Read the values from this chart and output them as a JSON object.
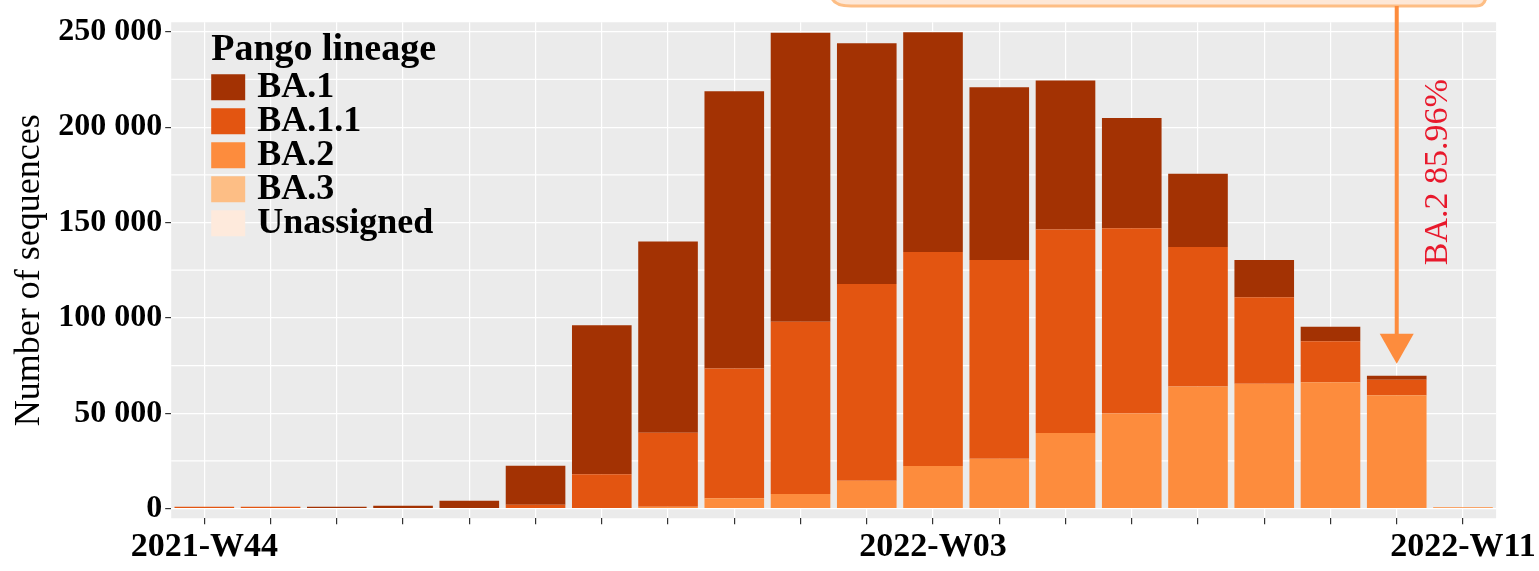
{
  "chart_data": {
    "type": "bar",
    "stacked": true,
    "ylabel": "Number of sequences",
    "legend_title": "Pango lineage",
    "legend": "top left",
    "grid": true,
    "categories": [
      "2021-W44",
      null,
      null,
      null,
      null,
      null,
      null,
      null,
      null,
      null,
      null,
      "2022-W03",
      null,
      null,
      null,
      null,
      null,
      null,
      null,
      "2022-W11"
    ],
    "series": [
      {
        "name": "Unassigned",
        "color": "#feeadc",
        "values": [
          0,
          0,
          0,
          0,
          0,
          0,
          0,
          0,
          0,
          0,
          0,
          0,
          0,
          0,
          0,
          0,
          0,
          0,
          0,
          0
        ]
      },
      {
        "name": "BA.3",
        "color": "#fdbe85",
        "values": [
          0,
          0,
          0,
          0,
          0,
          0,
          0,
          0,
          0,
          0,
          0,
          0,
          0,
          0,
          0,
          0,
          0,
          0,
          0,
          0
        ]
      },
      {
        "name": "BA.2",
        "color": "#fd8c3d",
        "values": [
          0,
          0,
          0,
          0,
          0,
          0,
          0,
          1000,
          5500,
          7700,
          14600,
          22300,
          26200,
          39600,
          49900,
          64100,
          65500,
          66200,
          59500,
          800
        ]
      },
      {
        "name": "BA.1.1",
        "color": "#e35511",
        "values": [
          1000,
          1000,
          0,
          0,
          0,
          2100,
          18000,
          38800,
          68000,
          90300,
          103200,
          112200,
          104100,
          106800,
          97100,
          73100,
          45300,
          21600,
          8100,
          0
        ]
      },
      {
        "name": "BA.1",
        "color": "#a33203",
        "values": [
          0,
          0,
          1000,
          1500,
          4200,
          20400,
          78200,
          100200,
          145300,
          151500,
          126200,
          115200,
          90600,
          78000,
          57800,
          38400,
          19500,
          7600,
          2100,
          0
        ]
      }
    ],
    "ylim": [
      -5000,
      255000
    ],
    "yticks": [
      {
        "value": 0,
        "label": "0"
      },
      {
        "value": 50000,
        "label": "50 000"
      },
      {
        "value": 100000,
        "label": "100 000"
      },
      {
        "value": 150000,
        "label": "150 000"
      },
      {
        "value": 200000,
        "label": "200 000"
      },
      {
        "value": 250000,
        "label": "250 000"
      }
    ],
    "annotations": [
      "BA.2 85.96%"
    ]
  }
}
